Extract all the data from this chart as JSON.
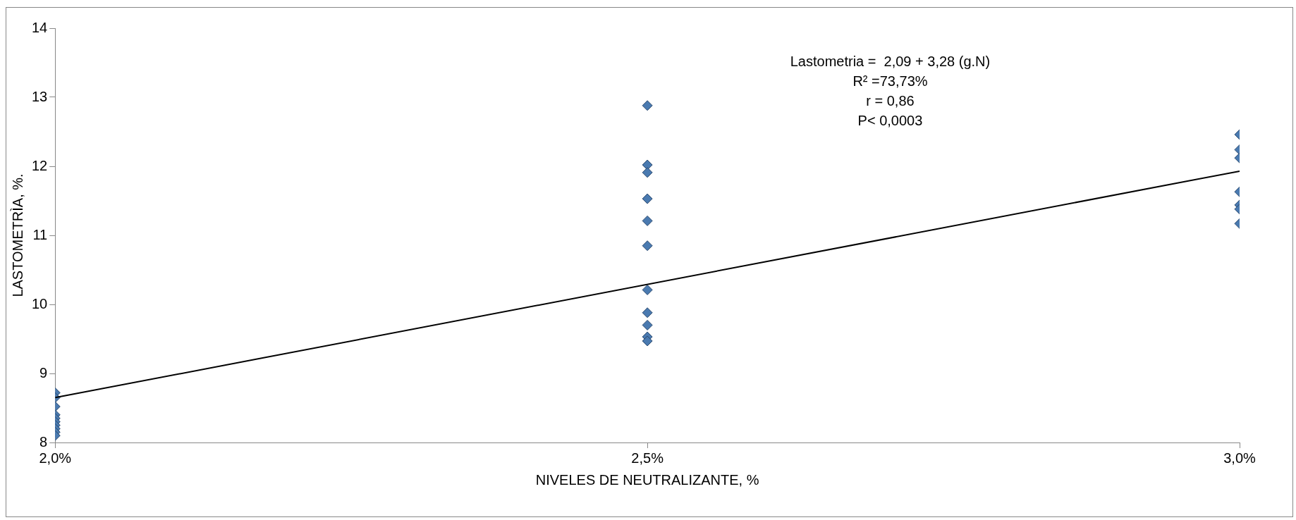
{
  "chart_data": {
    "type": "scatter",
    "xlabel": "NIVELES DE NEUTRALIZANTE, %",
    "ylabel": "LASTOMETRÌA, %.",
    "xlim": [
      2,
      3
    ],
    "xticks": [
      {
        "value": 2,
        "label": "2,0%"
      },
      {
        "value": 2.5,
        "label": "2,5%"
      },
      {
        "value": 3,
        "label": "3,0%"
      }
    ],
    "ylim": [
      8,
      14
    ],
    "yticks": [
      8,
      9,
      10,
      11,
      12,
      13,
      14
    ],
    "grid": false,
    "legend": false,
    "series": [
      {
        "marker": "diamond",
        "color": "#4a7ab0",
        "x": [
          2,
          2,
          2,
          2,
          2,
          2,
          2,
          2,
          2,
          2,
          2.5,
          2.5,
          2.5,
          2.5,
          2.5,
          2.5,
          2.5,
          2.5,
          2.5,
          2.5,
          2.5,
          3,
          3,
          3,
          3,
          3,
          3,
          3
        ],
        "values": [
          8.72,
          8.65,
          8.52,
          8.4,
          8.35,
          8.3,
          8.25,
          8.2,
          8.15,
          8.1,
          12.88,
          12.02,
          11.91,
          11.53,
          11.21,
          10.85,
          10.21,
          9.88,
          9.7,
          9.53,
          9.47,
          12.46,
          12.24,
          12.12,
          11.63,
          11.44,
          11.38,
          11.17
        ]
      },
      {
        "type": "line",
        "marker": "none",
        "color": "#000000",
        "x": [
          2,
          3
        ],
        "values": [
          8.65,
          11.93
        ]
      }
    ],
    "annotations": [
      "Lastometria =  2,09 + 3,28 (g.N)",
      "R² =73,73%",
      "r = 0,86",
      "P< 0,0003"
    ]
  }
}
